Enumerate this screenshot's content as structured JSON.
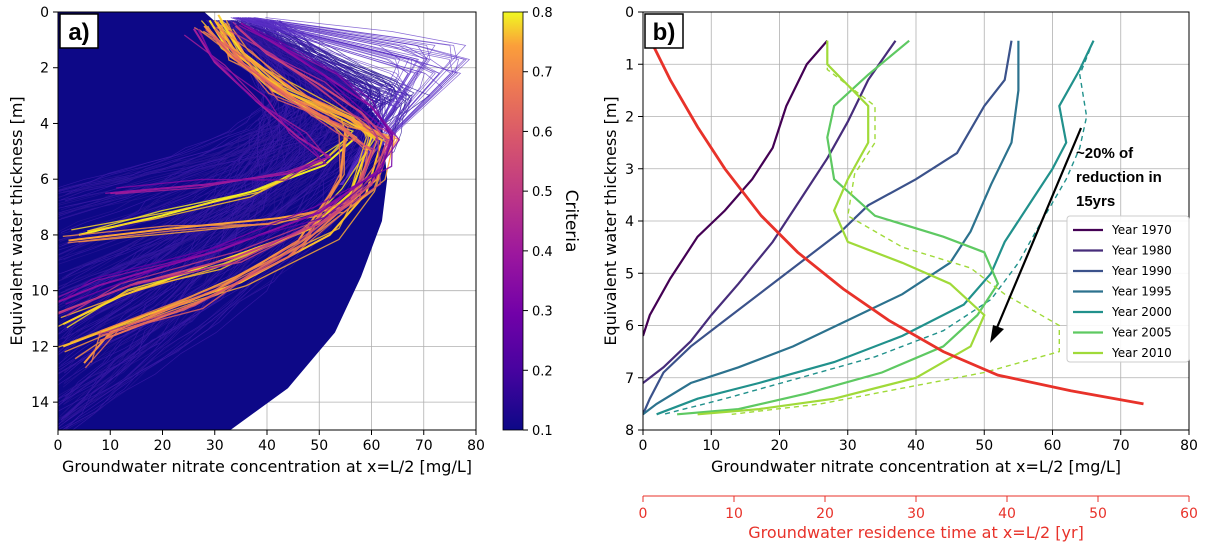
{
  "chart_data": [
    {
      "panel_label": "a)",
      "type": "line",
      "xlabel": "Groundwater nitrate concentration at x=L/2 [mg/L]",
      "ylabel": "Equivalent water thickness [m]",
      "xlim": [
        0,
        80
      ],
      "ylim": [
        15,
        0
      ],
      "y_inverted": true,
      "xticks": [
        "0",
        "10",
        "20",
        "30",
        "40",
        "50",
        "60",
        "70",
        "80"
      ],
      "yticks": [
        "0",
        "2",
        "4",
        "6",
        "8",
        "10",
        "12",
        "14"
      ],
      "grid": true,
      "colormap": "plasma",
      "colorbar": {
        "label": "Criteria",
        "range": [
          0.1,
          0.8
        ],
        "ticks": [
          "0.8",
          "0.7",
          "0.6",
          "0.5",
          "0.4",
          "0.3",
          "0.2",
          "0.1"
        ]
      },
      "representative_profiles": [
        {
          "criteria": 0.78,
          "points": [
            [
              29,
              0.3
            ],
            [
              33,
              1.5
            ],
            [
              41,
              2.8
            ],
            [
              53,
              4.0
            ],
            [
              57,
              4.5
            ],
            [
              51,
              5.5
            ],
            [
              38,
              6.4
            ],
            [
              20,
              7.3
            ],
            [
              4,
              8.0
            ]
          ]
        },
        {
          "criteria": 0.75,
          "points": [
            [
              31,
              0.3
            ],
            [
              35,
              1.4
            ],
            [
              44,
              2.7
            ],
            [
              56,
              3.8
            ],
            [
              60,
              4.5
            ],
            [
              56,
              6.5
            ],
            [
              48,
              7.8
            ],
            [
              30,
              9.0
            ],
            [
              12,
              10.2
            ],
            [
              1,
              11.2
            ]
          ]
        },
        {
          "criteria": 0.7,
          "points": [
            [
              30,
              0.3
            ],
            [
              34,
              1.5
            ],
            [
              43,
              2.8
            ],
            [
              55,
              3.9
            ],
            [
              62,
              4.6
            ],
            [
              59,
              6.5
            ],
            [
              52,
              8.0
            ],
            [
              35,
              9.7
            ],
            [
              15,
              11.0
            ],
            [
              1,
              12.0
            ]
          ]
        },
        {
          "criteria": 0.65,
          "points": [
            [
              32,
              0.4
            ],
            [
              36,
              1.6
            ],
            [
              46,
              2.9
            ],
            [
              57,
              3.9
            ],
            [
              64,
              4.6
            ],
            [
              61,
              6.0
            ],
            [
              55,
              7.0
            ],
            [
              42,
              7.4
            ],
            [
              20,
              7.8
            ],
            [
              2,
              8.2
            ]
          ]
        },
        {
          "criteria": 0.62,
          "points": [
            [
              28,
              0.5
            ],
            [
              33,
              1.6
            ],
            [
              42,
              2.7
            ],
            [
              50,
              3.7
            ],
            [
              55,
              4.2
            ],
            [
              54,
              6.0
            ],
            [
              46,
              8.2
            ],
            [
              30,
              10.0
            ],
            [
              10,
              11.5
            ],
            [
              5,
              12.6
            ]
          ]
        },
        {
          "criteria": 0.55,
          "points": [
            [
              30,
              0.6
            ],
            [
              35,
              1.8
            ],
            [
              44,
              3.0
            ],
            [
              54,
              4.1
            ],
            [
              60,
              5.0
            ],
            [
              56,
              6.8
            ],
            [
              44,
              8.8
            ],
            [
              26,
              10.5
            ],
            [
              8,
              11.8
            ]
          ]
        },
        {
          "criteria": 0.45,
          "points": [
            [
              34,
              0.5
            ],
            [
              40,
              1.5
            ],
            [
              50,
              2.6
            ],
            [
              58,
              3.6
            ],
            [
              63,
              4.6
            ],
            [
              60,
              6.2
            ],
            [
              50,
              7.6
            ],
            [
              34,
              8.8
            ],
            [
              14,
              9.8
            ],
            [
              0,
              10.8
            ]
          ]
        },
        {
          "criteria": 0.35,
          "points": [
            [
              26,
              0.6
            ],
            [
              30,
              1.8
            ],
            [
              38,
              3.2
            ],
            [
              46,
              4.5
            ],
            [
              52,
              5.2
            ],
            [
              44,
              5.8
            ],
            [
              28,
              6.2
            ],
            [
              10,
              6.5
            ]
          ]
        },
        {
          "criteria": 0.3,
          "points": [
            [
              35,
              0.4
            ],
            [
              42,
              1.2
            ],
            [
              52,
              2.4
            ],
            [
              60,
              3.4
            ],
            [
              64,
              4.4
            ],
            [
              62,
              5.6
            ],
            [
              50,
              7.2
            ],
            [
              30,
              8.6
            ],
            [
              8,
              9.8
            ],
            [
              0,
              10.4
            ]
          ]
        }
      ]
    },
    {
      "panel_label": "b)",
      "type": "line",
      "xlabel": "Groundwater nitrate concentration at x=L/2 [mg/L]",
      "ylabel": "Equivalent water thickness [m]",
      "xlim": [
        0,
        80
      ],
      "ylim": [
        8,
        0
      ],
      "y_inverted": true,
      "xticks": [
        "0",
        "10",
        "20",
        "30",
        "40",
        "50",
        "60",
        "70",
        "80"
      ],
      "yticks": [
        "0",
        "1",
        "2",
        "3",
        "4",
        "5",
        "6",
        "7",
        "8"
      ],
      "grid": true,
      "secondary_x": {
        "label": "Groundwater residence time at x=L/2 [yr]",
        "range": [
          0,
          60
        ],
        "ticks": [
          "0",
          "10",
          "20",
          "30",
          "40",
          "50",
          "60"
        ],
        "color": "#e8322a"
      },
      "annotation": [
        "~20% of",
        "reduction in",
        "15yrs"
      ],
      "legend_position": "right",
      "series": [
        {
          "name": "Year 1970",
          "color": "#440154",
          "dashed": false,
          "points": [
            [
              27,
              0.55
            ],
            [
              24,
              1.0
            ],
            [
              21,
              1.8
            ],
            [
              19,
              2.6
            ],
            [
              16,
              3.2
            ],
            [
              12,
              3.8
            ],
            [
              8,
              4.3
            ],
            [
              4,
              5.1
            ],
            [
              1,
              5.8
            ],
            [
              0,
              6.2
            ]
          ]
        },
        {
          "name": "Year 1980",
          "color": "#472d7b",
          "dashed": false,
          "points": [
            [
              37,
              0.55
            ],
            [
              33,
              1.3
            ],
            [
              30,
              2.1
            ],
            [
              27,
              2.8
            ],
            [
              23,
              3.6
            ],
            [
              19,
              4.4
            ],
            [
              14,
              5.2
            ],
            [
              10,
              5.8
            ],
            [
              7,
              6.3
            ],
            [
              3,
              6.8
            ],
            [
              0,
              7.1
            ]
          ]
        },
        {
          "name": "Year 1990",
          "color": "#3b528b",
          "dashed": false,
          "points": [
            [
              54,
              0.55
            ],
            [
              53,
              1.3
            ],
            [
              50,
              1.8
            ],
            [
              46,
              2.7
            ],
            [
              40,
              3.2
            ],
            [
              33,
              3.7
            ],
            [
              29,
              4.2
            ],
            [
              24,
              4.7
            ],
            [
              18,
              5.3
            ],
            [
              12,
              5.9
            ],
            [
              7,
              6.4
            ],
            [
              3,
              6.9
            ],
            [
              1,
              7.4
            ],
            [
              0,
              7.7
            ]
          ]
        },
        {
          "name": "Year 1995",
          "color": "#2c728e",
          "dashed": false,
          "points": [
            [
              55,
              0.55
            ],
            [
              55,
              1.5
            ],
            [
              54,
              2.5
            ],
            [
              51,
              3.3
            ],
            [
              48,
              4.2
            ],
            [
              45,
              4.8
            ],
            [
              38,
              5.4
            ],
            [
              30,
              5.9
            ],
            [
              22,
              6.4
            ],
            [
              14,
              6.8
            ],
            [
              7,
              7.1
            ],
            [
              2,
              7.5
            ],
            [
              0,
              7.7
            ]
          ]
        },
        {
          "name": "Year 2000",
          "color": "#21918c",
          "dashed": false,
          "points": [
            [
              66,
              0.55
            ],
            [
              64,
              1.1
            ],
            [
              61,
              1.8
            ],
            [
              62,
              2.5
            ],
            [
              60,
              3.0
            ],
            [
              57,
              3.6
            ],
            [
              53,
              4.4
            ],
            [
              51,
              5.0
            ],
            [
              47,
              5.6
            ],
            [
              38,
              6.2
            ],
            [
              28,
              6.7
            ],
            [
              17,
              7.1
            ],
            [
              8,
              7.4
            ],
            [
              2,
              7.7
            ]
          ]
        },
        {
          "name": "Year 2000 (dashed)",
          "color": "#21918c",
          "dashed": true,
          "points": [
            [
              66,
              0.55
            ],
            [
              64,
              1.2
            ],
            [
              65,
              2.0
            ],
            [
              64,
              2.6
            ],
            [
              62,
              3.2
            ],
            [
              58,
              4.1
            ],
            [
              55,
              4.8
            ],
            [
              51,
              5.5
            ],
            [
              44,
              6.1
            ],
            [
              34,
              6.6
            ],
            [
              23,
              7.0
            ],
            [
              12,
              7.4
            ],
            [
              3,
              7.7
            ]
          ]
        },
        {
          "name": "Year 2005",
          "color": "#5ec962",
          "dashed": false,
          "points": [
            [
              39,
              0.55
            ],
            [
              33,
              1.2
            ],
            [
              28,
              1.8
            ],
            [
              27,
              2.4
            ],
            [
              28,
              3.2
            ],
            [
              34,
              3.9
            ],
            [
              44,
              4.3
            ],
            [
              50,
              4.6
            ],
            [
              52,
              5.2
            ],
            [
              49,
              5.8
            ],
            [
              44,
              6.4
            ],
            [
              35,
              6.9
            ],
            [
              24,
              7.3
            ],
            [
              14,
              7.6
            ],
            [
              5,
              7.7
            ]
          ]
        },
        {
          "name": "Year 2010",
          "color": "#a0da39",
          "dashed": false,
          "points": [
            [
              27,
              0.55
            ],
            [
              27,
              1.0
            ],
            [
              33,
              1.8
            ],
            [
              33,
              2.5
            ],
            [
              30,
              3.2
            ],
            [
              28,
              3.8
            ],
            [
              30,
              4.4
            ],
            [
              38,
              4.8
            ],
            [
              45,
              5.2
            ],
            [
              50,
              5.8
            ],
            [
              48,
              6.4
            ],
            [
              40,
              7.0
            ],
            [
              28,
              7.4
            ],
            [
              17,
              7.6
            ],
            [
              8,
              7.7
            ]
          ]
        },
        {
          "name": "Year 2010 (dashed)",
          "color": "#a0da39",
          "dashed": true,
          "points": [
            [
              27,
              0.55
            ],
            [
              27,
              1.1
            ],
            [
              34,
              1.8
            ],
            [
              34,
              2.5
            ],
            [
              31,
              3.1
            ],
            [
              30,
              3.9
            ],
            [
              38,
              4.5
            ],
            [
              48,
              4.9
            ],
            [
              53,
              5.4
            ],
            [
              61,
              6.0
            ],
            [
              61,
              6.5
            ],
            [
              50,
              6.9
            ],
            [
              38,
              7.2
            ],
            [
              26,
              7.5
            ],
            [
              13,
              7.7
            ]
          ]
        }
      ],
      "residence_time_curve": {
        "name": "Residence time",
        "color": "#e8322a",
        "axis": "secondary",
        "points": [
          [
            0.5,
            0.1
          ],
          [
            1,
            0.6
          ],
          [
            3,
            1.3
          ],
          [
            6,
            2.2
          ],
          [
            9,
            3.0
          ],
          [
            13,
            3.9
          ],
          [
            17,
            4.6
          ],
          [
            22,
            5.3
          ],
          [
            27,
            5.9
          ],
          [
            33,
            6.5
          ],
          [
            39,
            6.95
          ],
          [
            47,
            7.25
          ],
          [
            55,
            7.5
          ]
        ]
      }
    }
  ]
}
